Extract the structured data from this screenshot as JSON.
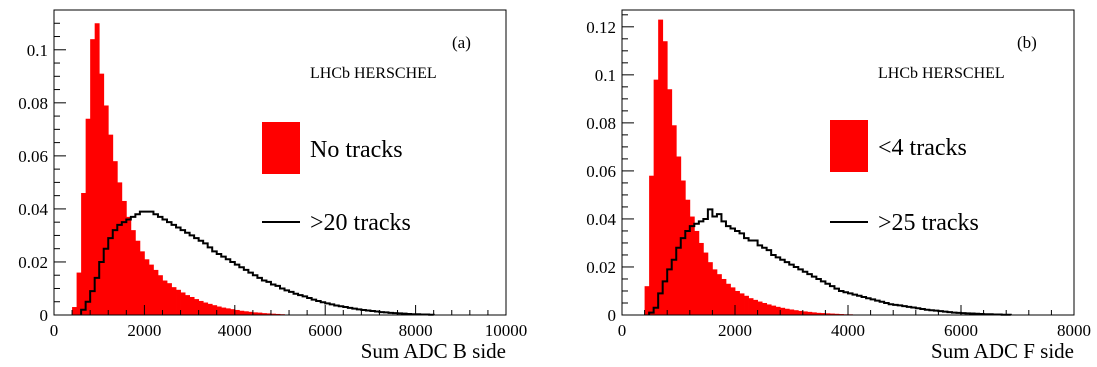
{
  "chart_data": [
    {
      "type": "histogram",
      "panel_label": "(a)",
      "experiment_label": "LHCb HERSCHEL",
      "xlabel": "Sum ADC B side",
      "ylabel": "",
      "xlim": [
        0,
        10000
      ],
      "ylim": [
        0,
        0.115
      ],
      "xticks": [
        "0",
        "2000",
        "4000",
        "6000",
        "8000",
        "10000"
      ],
      "yticks": [
        "0",
        "0.02",
        "0.04",
        "0.06",
        "0.08",
        "0.1"
      ],
      "legend": [
        {
          "label": "No tracks",
          "style": "filled",
          "color": "#ff0000"
        },
        {
          "label": ">20 tracks",
          "style": "line",
          "color": "#000000"
        }
      ],
      "series": [
        {
          "name": "No tracks",
          "style": "filled",
          "color": "#ff0000",
          "bin_width": 100,
          "start": 400,
          "values": [
            0.003,
            0.016,
            0.046,
            0.074,
            0.104,
            0.11,
            0.091,
            0.079,
            0.068,
            0.058,
            0.05,
            0.043,
            0.037,
            0.032,
            0.028,
            0.024,
            0.021,
            0.019,
            0.017,
            0.015,
            0.013,
            0.012,
            0.0105,
            0.0095,
            0.0085,
            0.0075,
            0.0068,
            0.006,
            0.0053,
            0.0047,
            0.0042,
            0.0037,
            0.0032,
            0.0028,
            0.0025,
            0.0022,
            0.0019,
            0.0016,
            0.0014,
            0.0012,
            0.001,
            0.0009,
            0.0007,
            0.0006,
            0.0005,
            0.0004,
            0.0003
          ]
        },
        {
          "name": ">20 tracks",
          "style": "step",
          "color": "#000000",
          "bin_width": 100,
          "start": 600,
          "values": [
            0.002,
            0.005,
            0.009,
            0.014,
            0.02,
            0.025,
            0.029,
            0.032,
            0.034,
            0.035,
            0.036,
            0.037,
            0.038,
            0.039,
            0.039,
            0.039,
            0.038,
            0.037,
            0.036,
            0.035,
            0.034,
            0.033,
            0.032,
            0.031,
            0.03,
            0.029,
            0.028,
            0.027,
            0.0255,
            0.024,
            0.023,
            0.022,
            0.021,
            0.02,
            0.019,
            0.018,
            0.017,
            0.016,
            0.015,
            0.014,
            0.013,
            0.0125,
            0.0115,
            0.011,
            0.01,
            0.0093,
            0.0087,
            0.008,
            0.0075,
            0.007,
            0.0064,
            0.0058,
            0.0053,
            0.0048,
            0.0044,
            0.004,
            0.0036,
            0.0033,
            0.003,
            0.0027,
            0.0024,
            0.0021,
            0.0019,
            0.0017,
            0.0015,
            0.0013,
            0.0011,
            0.001,
            0.0008,
            0.0007,
            0.0006,
            0.0005,
            0.0004,
            0.0003,
            0.0003,
            0.0002,
            0.0002,
            0.0001
          ]
        }
      ]
    },
    {
      "type": "histogram",
      "panel_label": "(b)",
      "experiment_label": "LHCb HERSCHEL",
      "xlabel": "Sum ADC F side",
      "ylabel": "",
      "xlim": [
        0,
        8000
      ],
      "ylim": [
        0,
        0.127
      ],
      "xticks": [
        "0",
        "2000",
        "4000",
        "6000",
        "8000"
      ],
      "yticks": [
        "0",
        "0.02",
        "0.04",
        "0.06",
        "0.08",
        "0.1",
        "0.12"
      ],
      "legend": [
        {
          "label": "<4 tracks",
          "style": "filled",
          "color": "#ff0000"
        },
        {
          "label": ">25 tracks",
          "style": "line",
          "color": "#000000"
        }
      ],
      "series": [
        {
          "name": "<4 tracks",
          "style": "filled",
          "color": "#ff0000",
          "bin_width": 80,
          "start": 400,
          "values": [
            0.012,
            0.058,
            0.098,
            0.123,
            0.114,
            0.094,
            0.079,
            0.066,
            0.056,
            0.048,
            0.041,
            0.035,
            0.03,
            0.026,
            0.022,
            0.019,
            0.017,
            0.015,
            0.013,
            0.0115,
            0.01,
            0.009,
            0.008,
            0.007,
            0.0063,
            0.0056,
            0.005,
            0.0044,
            0.0039,
            0.0034,
            0.003,
            0.0026,
            0.0023,
            0.002,
            0.0017,
            0.0015,
            0.0013,
            0.0011,
            0.0009,
            0.0008,
            0.0007,
            0.0006,
            0.0005,
            0.0004,
            0.0003,
            0.0003,
            0.0002,
            0.0002,
            0.0001,
            0.0001
          ]
        },
        {
          "name": ">25 tracks",
          "style": "step",
          "color": "#000000",
          "bin_width": 80,
          "start": 480,
          "values": [
            0.001,
            0.003,
            0.009,
            0.014,
            0.019,
            0.023,
            0.028,
            0.032,
            0.035,
            0.037,
            0.038,
            0.039,
            0.04,
            0.044,
            0.041,
            0.042,
            0.039,
            0.037,
            0.036,
            0.035,
            0.034,
            0.032,
            0.031,
            0.031,
            0.029,
            0.028,
            0.027,
            0.025,
            0.024,
            0.023,
            0.022,
            0.021,
            0.02,
            0.019,
            0.018,
            0.017,
            0.016,
            0.015,
            0.014,
            0.013,
            0.012,
            0.011,
            0.01,
            0.0095,
            0.009,
            0.0085,
            0.008,
            0.0075,
            0.007,
            0.0065,
            0.006,
            0.0055,
            0.005,
            0.0045,
            0.0042,
            0.004,
            0.0037,
            0.0034,
            0.0031,
            0.0028,
            0.0025,
            0.0022,
            0.002,
            0.0018,
            0.0016,
            0.0014,
            0.0012,
            0.001,
            0.0009,
            0.0008,
            0.0007,
            0.0006,
            0.0005,
            0.0004,
            0.0003,
            0.0003,
            0.0002,
            0.0002,
            0.0001,
            0.0001
          ]
        }
      ]
    }
  ]
}
